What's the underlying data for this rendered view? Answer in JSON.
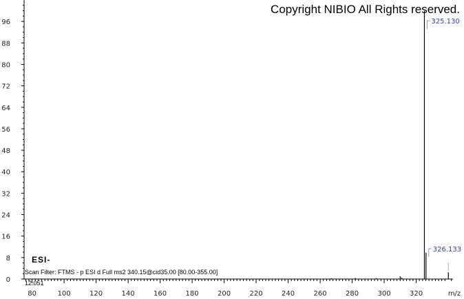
{
  "copyright": "Copyright NIBIO All Rights reserved.",
  "ionization": "ESI-",
  "scan_filter": "Scan Filter: FTMS - p ESI d Full ms2 340.15@cid35.00 [80.00-355.00]",
  "retention_time": "12.051",
  "chart_data": {
    "type": "bar",
    "xlabel": "m/z",
    "ylabel": "",
    "xlim": [
      75,
      343
    ],
    "ylim": [
      0,
      104
    ],
    "x_ticks": [
      80,
      100,
      120,
      140,
      160,
      180,
      200,
      220,
      240,
      260,
      280,
      300,
      320
    ],
    "y_ticks": [
      0,
      8,
      16,
      24,
      32,
      40,
      48,
      56,
      64,
      72,
      80,
      88,
      96
    ],
    "peaks": [
      {
        "mz": 267.0,
        "intensity": 0.3
      },
      {
        "mz": 282.0,
        "intensity": 0.4
      },
      {
        "mz": 295.0,
        "intensity": 0.3
      },
      {
        "mz": 310.0,
        "intensity": 1.0
      },
      {
        "mz": 311.0,
        "intensity": 0.5
      },
      {
        "mz": 325.13,
        "intensity": 100,
        "label": "325.130"
      },
      {
        "mz": 326.133,
        "intensity": 9.8,
        "label": "326.133"
      },
      {
        "mz": 340.1,
        "intensity": 2.5
      }
    ],
    "colors": {
      "peak": "#000000",
      "label": "#3a3aa0",
      "axis": "#000000"
    }
  }
}
